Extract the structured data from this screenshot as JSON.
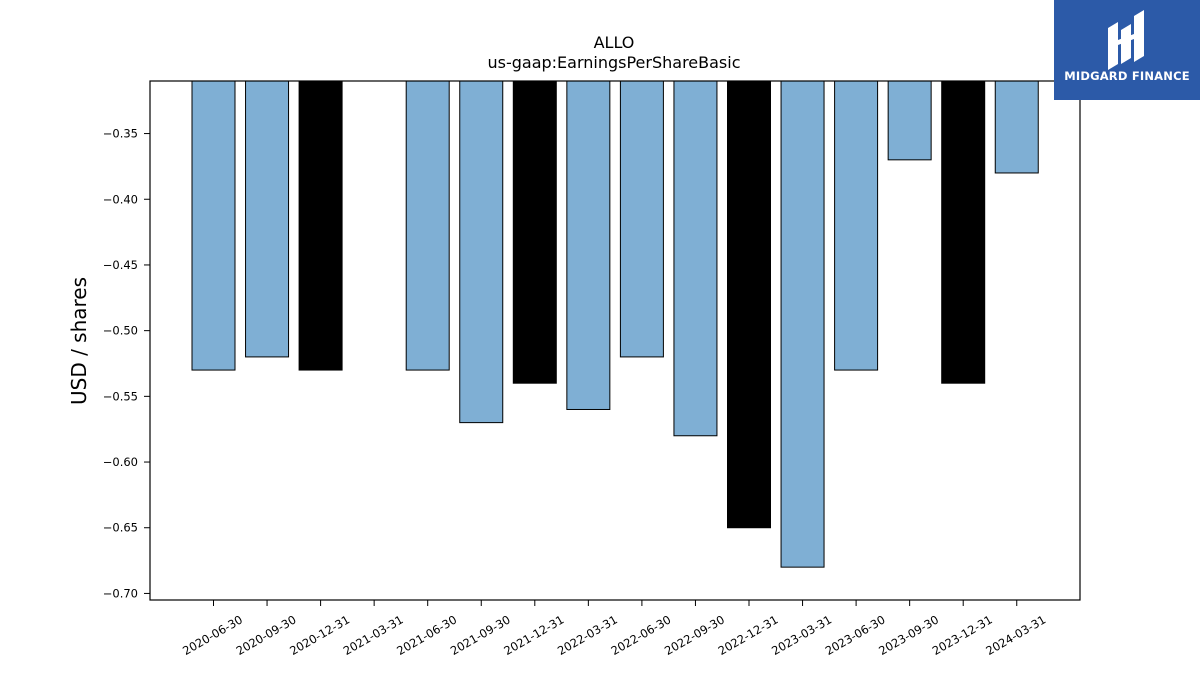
{
  "logo": {
    "text": "MIDGARD FINANCE"
  },
  "chart_data": {
    "type": "bar",
    "title": "ALLO",
    "subtitle": "us-gaap:EarningsPerShareBasic",
    "ylabel": "USD / shares",
    "xlabel": "",
    "ylim": [
      -0.705,
      -0.31
    ],
    "yticks": [
      -0.35,
      -0.4,
      -0.45,
      -0.5,
      -0.55,
      -0.6,
      -0.65,
      -0.7
    ],
    "ytick_labels": [
      "−0.35",
      "−0.40",
      "−0.45",
      "−0.50",
      "−0.55",
      "−0.60",
      "−0.65",
      "−0.70"
    ],
    "categories": [
      "2020-06-30",
      "2020-09-30",
      "2020-12-31",
      "2021-03-31",
      "2021-06-30",
      "2021-09-30",
      "2021-12-31",
      "2022-03-31",
      "2022-06-30",
      "2022-09-30",
      "2022-12-31",
      "2023-03-31",
      "2023-06-30",
      "2023-09-30",
      "2023-12-31",
      "2024-03-31"
    ],
    "values": [
      -0.53,
      -0.52,
      -0.53,
      null,
      -0.53,
      -0.57,
      -0.54,
      -0.56,
      -0.52,
      -0.58,
      -0.65,
      -0.68,
      -0.53,
      -0.37,
      -0.54,
      -0.38
    ],
    "bar_colors": [
      "#7fafd4",
      "#7fafd4",
      "#000000",
      "#7fafd4",
      "#7fafd4",
      "#7fafd4",
      "#000000",
      "#7fafd4",
      "#7fafd4",
      "#7fafd4",
      "#000000",
      "#7fafd4",
      "#7fafd4",
      "#7fafd4",
      "#000000",
      "#7fafd4"
    ],
    "grid": false,
    "legend": "none"
  }
}
